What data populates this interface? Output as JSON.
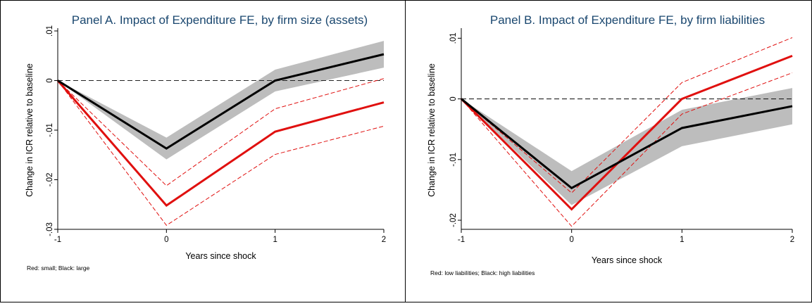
{
  "colors": {
    "title": "#1a476f",
    "red": "#e0100f",
    "black": "#000000",
    "band": "#bdbdbd"
  },
  "chart_data": [
    {
      "type": "line",
      "title": "Panel A. Impact of Expenditure FE, by firm size (assets)",
      "xlabel": "Years since shock",
      "ylabel": "Change in ICR relative to baseline",
      "note": "Red: small; Black: large",
      "x": [
        -1,
        0,
        1,
        2
      ],
      "xticks": [
        -1,
        0,
        1,
        2
      ],
      "xtick_labels": [
        "-1",
        "0",
        "1",
        "2"
      ],
      "yticks": [
        0.01,
        0,
        -0.01,
        -0.02,
        -0.03
      ],
      "ytick_labels": [
        ".01",
        "0",
        "-.01",
        "-.02",
        "-.03"
      ],
      "xlim": [
        -1,
        2
      ],
      "ylim": [
        -0.03,
        0.01
      ],
      "reference_line": 0,
      "series": [
        {
          "values": [
            0,
            -0.0252,
            -0.0103,
            -0.0044
          ],
          "ci_low": [
            0,
            -0.0292,
            -0.0149,
            -0.0092
          ],
          "ci_high": [
            0,
            -0.0212,
            -0.0057,
            0.0004
          ],
          "color": "red",
          "ci_style": "dashed"
        },
        {
          "values": [
            0,
            -0.0137,
            0.0,
            0.0053
          ],
          "ci_low": [
            0,
            -0.0159,
            -0.0022,
            0.0026
          ],
          "ci_high": [
            0,
            -0.0115,
            0.0022,
            0.008
          ],
          "color": "black",
          "ci_style": "band"
        }
      ]
    },
    {
      "type": "line",
      "title": "Panel B. Impact of Expenditure FE, by firm liabilities",
      "xlabel": "Years since shock",
      "ylabel": "Change in ICR relative to baseline",
      "note": "Red: low liabilities; Black: high liabilities",
      "x": [
        -1,
        0,
        1,
        2
      ],
      "xticks": [
        -1,
        0,
        1,
        2
      ],
      "xtick_labels": [
        "-1",
        "0",
        "1",
        "2"
      ],
      "yticks": [
        0.01,
        0,
        -0.01,
        -0.02
      ],
      "ytick_labels": [
        ".01",
        "0",
        "-.01",
        "-.02"
      ],
      "xlim": [
        -1,
        2
      ],
      "ylim": [
        -0.0215,
        0.0112
      ],
      "reference_line": 0,
      "series": [
        {
          "values": [
            0,
            -0.0182,
            0.0,
            0.0071
          ],
          "ci_low": [
            0,
            -0.021,
            -0.0025,
            0.0043
          ],
          "ci_high": [
            0,
            -0.0155,
            0.0027,
            0.0101
          ],
          "color": "red",
          "ci_style": "dashed"
        },
        {
          "values": [
            0,
            -0.0147,
            -0.0048,
            -0.0012
          ],
          "ci_low": [
            0,
            -0.0175,
            -0.0078,
            -0.0042
          ],
          "ci_high": [
            0,
            -0.0119,
            -0.0018,
            0.0018
          ],
          "color": "black",
          "ci_style": "band"
        }
      ]
    }
  ]
}
